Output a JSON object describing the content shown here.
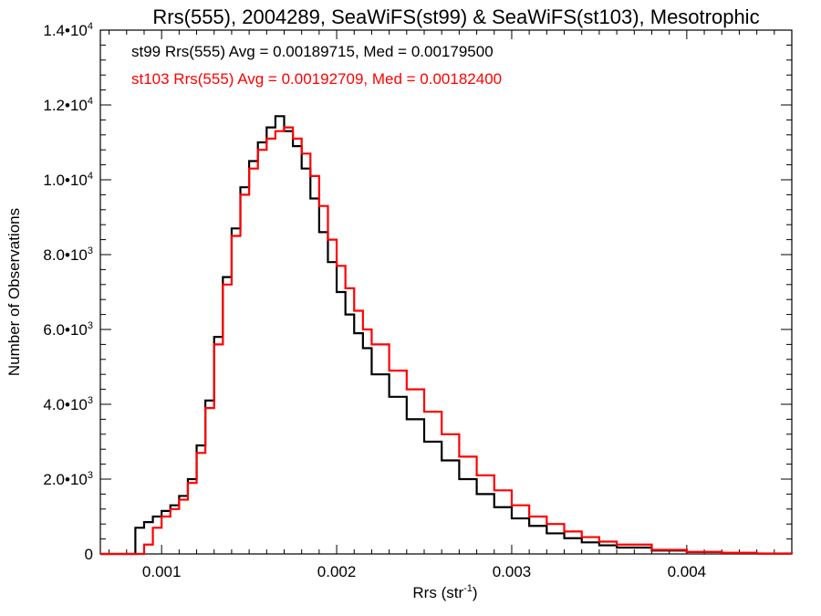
{
  "chart_data": {
    "type": "line",
    "title": "Rrs(555), 2004289, SeaWiFS(st99) & SeaWiFS(st103), Mesotrophic",
    "xlabel": "Rrs (str",
    "xlabel_sup": "-1",
    "xlabel_end": ")",
    "ylabel": "Number of Observations",
    "xlim": [
      0.00065,
      0.0046
    ],
    "ylim": [
      0,
      14000
    ],
    "x_ticks": [
      {
        "value": 0.001,
        "label": "0.001"
      },
      {
        "value": 0.002,
        "label": "0.002"
      },
      {
        "value": 0.003,
        "label": "0.003"
      },
      {
        "value": 0.004,
        "label": "0.004"
      }
    ],
    "y_ticks": [
      {
        "value": 0,
        "mant": "0",
        "exp": ""
      },
      {
        "value": 2000,
        "mant": "2.0•10",
        "exp": "3"
      },
      {
        "value": 4000,
        "mant": "4.0•10",
        "exp": "3"
      },
      {
        "value": 6000,
        "mant": "6.0•10",
        "exp": "3"
      },
      {
        "value": 8000,
        "mant": "8.0•10",
        "exp": "3"
      },
      {
        "value": 10000,
        "mant": "1.0•10",
        "exp": "4"
      },
      {
        "value": 12000,
        "mant": "1.2•10",
        "exp": "4"
      },
      {
        "value": 14000,
        "mant": "1.4•10",
        "exp": "4"
      }
    ],
    "annotations": [
      {
        "text": "st99 Rrs(555) Avg = 0.00189715, Med = 0.00179500",
        "color": "#000000"
      },
      {
        "text": "st103 Rrs(555) Avg = 0.00192709, Med = 0.00182400",
        "color": "#ff0000"
      }
    ],
    "series": [
      {
        "color": "#000000",
        "x": [
          0.00065,
          0.0008,
          0.00085,
          0.0009,
          0.00095,
          0.001,
          0.00105,
          0.0011,
          0.00115,
          0.0012,
          0.00125,
          0.0013,
          0.00135,
          0.0014,
          0.00145,
          0.0015,
          0.00155,
          0.0016,
          0.00165,
          0.0017,
          0.00175,
          0.0018,
          0.00185,
          0.0019,
          0.00195,
          0.002,
          0.00205,
          0.0021,
          0.00215,
          0.0022,
          0.0023,
          0.0024,
          0.0025,
          0.0026,
          0.0027,
          0.0028,
          0.0029,
          0.003,
          0.0031,
          0.0032,
          0.0033,
          0.0034,
          0.0035,
          0.0036,
          0.0038,
          0.004,
          0.0042,
          0.0044,
          0.0046
        ],
        "y": [
          0,
          0,
          700,
          850,
          1000,
          1150,
          1300,
          1550,
          2000,
          2900,
          4100,
          5800,
          7400,
          8700,
          9800,
          10500,
          11000,
          11400,
          11700,
          11300,
          10900,
          10300,
          9500,
          8600,
          7800,
          7000,
          6400,
          5900,
          5500,
          4800,
          4200,
          3600,
          3000,
          2500,
          2000,
          1600,
          1250,
          950,
          750,
          550,
          420,
          310,
          230,
          170,
          90,
          50,
          25,
          10,
          0
        ]
      },
      {
        "color": "#ff0000",
        "x": [
          0.00065,
          0.00085,
          0.0009,
          0.00095,
          0.001,
          0.00105,
          0.0011,
          0.00115,
          0.0012,
          0.00125,
          0.0013,
          0.00135,
          0.0014,
          0.00145,
          0.0015,
          0.00155,
          0.0016,
          0.00165,
          0.0017,
          0.00175,
          0.0018,
          0.00185,
          0.0019,
          0.00195,
          0.002,
          0.00205,
          0.0021,
          0.00215,
          0.0022,
          0.0023,
          0.0024,
          0.0025,
          0.0026,
          0.0027,
          0.0028,
          0.0029,
          0.003,
          0.0031,
          0.0032,
          0.0033,
          0.0034,
          0.0035,
          0.0036,
          0.0038,
          0.004,
          0.0042,
          0.0044,
          0.0046
        ],
        "y": [
          0,
          0,
          250,
          700,
          1000,
          1200,
          1450,
          1900,
          2700,
          3900,
          5600,
          7200,
          8500,
          9600,
          10300,
          10800,
          11100,
          11300,
          11400,
          11100,
          10700,
          10100,
          9300,
          8400,
          7700,
          7100,
          6500,
          6000,
          5600,
          4900,
          4400,
          3800,
          3200,
          2600,
          2100,
          1700,
          1300,
          1000,
          800,
          600,
          450,
          330,
          250,
          110,
          55,
          30,
          12,
          0
        ]
      }
    ]
  }
}
